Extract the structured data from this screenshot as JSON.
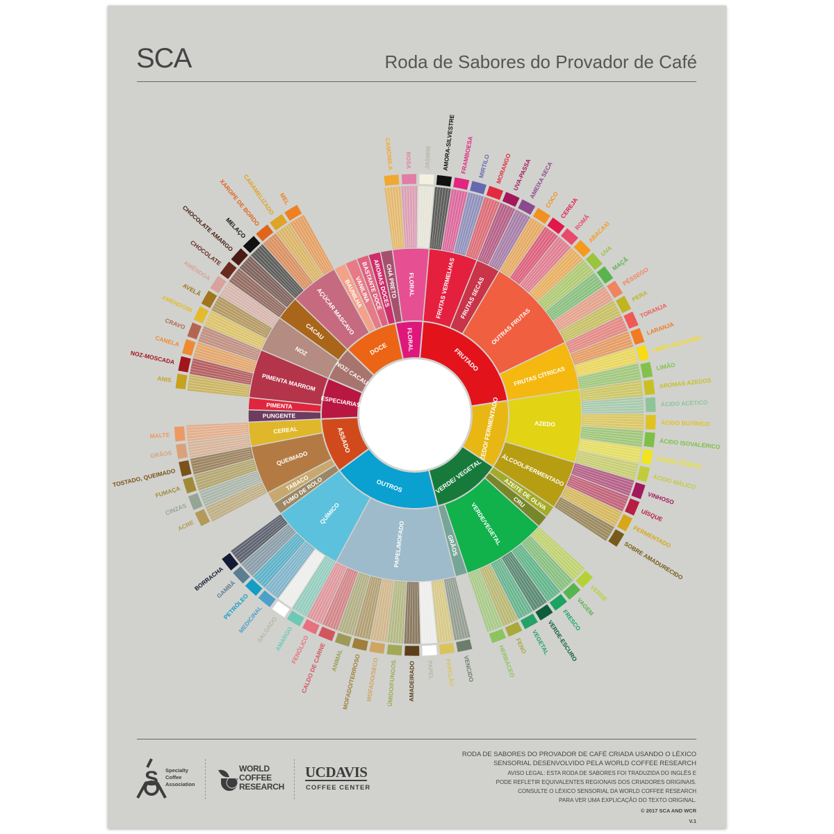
{
  "header": {
    "brand": "SCA",
    "title": "Roda de Sabores do Provador de Café"
  },
  "wheel": {
    "categories": [
      {
        "name": "FLORAL",
        "color": "#e0177a",
        "children": [
          {
            "name": "CHÁ PRETO",
            "color": "#a5516e",
            "children": []
          },
          {
            "name": "FLORAL",
            "color": "#e74f93",
            "children": [
              {
                "name": "CAMOMILA",
                "color": "#f0a832"
              },
              {
                "name": "ROSA",
                "color": "#e27ea5"
              },
              {
                "name": "JASMIM",
                "color": "#f4f0e0"
              }
            ]
          }
        ]
      },
      {
        "name": "FRUTADO",
        "color": "#e3131b",
        "children": [
          {
            "name": "FRUTAS VERMELHAS",
            "color": "#e5203e",
            "children": [
              {
                "name": "AMORA-SILVESTRE",
                "color": "#111111"
              },
              {
                "name": "FRAMBOESA",
                "color": "#e2257f"
              },
              {
                "name": "MIRTILO",
                "color": "#6668b0"
              },
              {
                "name": "MORANGO",
                "color": "#e22b3e"
              }
            ]
          },
          {
            "name": "FRUTAS SECAS",
            "color": "#c93448",
            "children": [
              {
                "name": "UVA-PASSA",
                "color": "#a4175a"
              },
              {
                "name": "AMEIXA SECA",
                "color": "#8b4a8f"
              }
            ]
          },
          {
            "name": "OUTRAS FRUTAS",
            "color": "#f05f40",
            "children": [
              {
                "name": "COCO",
                "color": "#f29120"
              },
              {
                "name": "CEREJA",
                "color": "#e3184a"
              },
              {
                "name": "ROMÃ",
                "color": "#e9496a"
              },
              {
                "name": "ABACAXI",
                "color": "#f59a1c"
              },
              {
                "name": "UVA",
                "color": "#9ac43b"
              },
              {
                "name": "MAÇÃ",
                "color": "#5ab44c"
              },
              {
                "name": "PÊSSEGO",
                "color": "#f08460"
              },
              {
                "name": "PERA",
                "color": "#c0b421"
              }
            ]
          },
          {
            "name": "FRUTAS CÍTRICAS",
            "color": "#f5b811",
            "children": [
              {
                "name": "TORANJA",
                "color": "#ef5a56"
              },
              {
                "name": "LARANJA",
                "color": "#f27a22"
              },
              {
                "name": "LIMÃO SICILIANO",
                "color": "#f8da17"
              },
              {
                "name": "LIMÃO",
                "color": "#82c24a"
              }
            ]
          }
        ]
      },
      {
        "name": "AZEDO/ FERMENTADO",
        "color": "#e8b714",
        "children": [
          {
            "name": "AZEDO",
            "color": "#e2d315",
            "children": [
              {
                "name": "AROMAS AZEDOS",
                "color": "#c8c026"
              },
              {
                "name": "ÁCIDO ACÉTICO",
                "color": "#8fc49a"
              },
              {
                "name": "ÁCIDO BUTÍRICO",
                "color": "#e0c221"
              },
              {
                "name": "ÁCIDO ISOVALÉRICO",
                "color": "#7ebf45"
              },
              {
                "name": "ÁCIDO CÍTRICO",
                "color": "#f0e520"
              },
              {
                "name": "ÁCIDO MÁLICO",
                "color": "#c2cc3b"
              }
            ]
          },
          {
            "name": "ÁLCOOL/FERMENTADO",
            "color": "#b79d12",
            "children": [
              {
                "name": "VINHOSO",
                "color": "#a2185b"
              },
              {
                "name": "UÍSQUE",
                "color": "#b81d44"
              },
              {
                "name": "FERMENTADO",
                "color": "#d7a718"
              },
              {
                "name": "SOBRE AMADURECIDO",
                "color": "#785a19"
              }
            ]
          }
        ]
      },
      {
        "name": "VERDE/ VEGETAL",
        "color": "#177a3a",
        "children": [
          {
            "name": "AZEITE DE OLIVA",
            "color": "#a4ab27",
            "children": []
          },
          {
            "name": "CRU",
            "color": "#78862a",
            "children": []
          },
          {
            "name": "VERDE/VEGETAL",
            "color": "#11b14b",
            "children": [
              {
                "name": "VERDE",
                "color": "#b4d236"
              },
              {
                "name": "VAGEM",
                "color": "#58b44e"
              },
              {
                "name": "FRESCO",
                "color": "#1aa361"
              },
              {
                "name": "VERDE-ESCURO",
                "color": "#0f5c3a"
              },
              {
                "name": "VEGETAL",
                "color": "#24a267"
              },
              {
                "name": "FENO",
                "color": "#aaa93a"
              },
              {
                "name": "HERBÁCEO",
                "color": "#8dc45e"
              }
            ]
          },
          {
            "name": "GRÃOS",
            "color": "#76a598",
            "children": []
          }
        ]
      },
      {
        "name": "OUTROS",
        "color": "#0aa0d0",
        "children": [
          {
            "name": "PAPEL/MOFADO",
            "color": "#9dbbcb",
            "children": [
              {
                "name": "VENCIDO",
                "color": "#6d7d6c"
              },
              {
                "name": "PAPELÃO",
                "color": "#dbc35c"
              },
              {
                "name": "PAPEL",
                "color": "#ffffff"
              },
              {
                "name": "AMADEIRADO",
                "color": "#5c3f1a"
              },
              {
                "name": "ÚMIDO/FUNGOS",
                "color": "#a2a857"
              },
              {
                "name": "MOFADO/SECO",
                "color": "#cea562"
              },
              {
                "name": "MOFADO/TERROSO",
                "color": "#9f7f3b"
              },
              {
                "name": "ANIMAL",
                "color": "#9c9a55"
              },
              {
                "name": "CALDO DE CARNE",
                "color": "#d3555e"
              },
              {
                "name": "FENÓLICO",
                "color": "#e7717f"
              }
            ]
          },
          {
            "name": "QUÍMICO",
            "color": "#5bc1dc",
            "children": [
              {
                "name": "AMARGO",
                "color": "#6dc9b6"
              },
              {
                "name": "SALGADO",
                "color": "#ffffff"
              },
              {
                "name": "MEDICINAL",
                "color": "#4ca1c9"
              },
              {
                "name": "PETRÓLEO",
                "color": "#139dc4"
              },
              {
                "name": "GAMBÁ",
                "color": "#5c7c91"
              },
              {
                "name": "BORRACHA",
                "color": "#121a34"
              }
            ]
          }
        ]
      },
      {
        "name": "ASSADO",
        "color": "#d14a1c",
        "children": [
          {
            "name": "FUMO DE ROLO",
            "color": "#9b8765",
            "children": []
          },
          {
            "name": "TABACO",
            "color": "#c8a86e",
            "children": []
          },
          {
            "name": "QUEIMADO",
            "color": "#b37b43",
            "children": [
              {
                "name": "ACRE",
                "color": "#b39a58"
              },
              {
                "name": "CINZAS",
                "color": "#95a595"
              },
              {
                "name": "FUMAÇA",
                "color": "#a08a36"
              },
              {
                "name": "TOSTADO, QUEIMADO",
                "color": "#7a521a"
              }
            ]
          },
          {
            "name": "CEREAL",
            "color": "#e0b72a",
            "children": [
              {
                "name": "GRÃOS",
                "color": "#d9a27c"
              },
              {
                "name": "MALTE",
                "color": "#ec9a64"
              }
            ]
          }
        ]
      },
      {
        "name": "ESPECIARIAS",
        "color": "#b81741",
        "children": [
          {
            "name": "PUNGENTE",
            "color": "#6d3b5e",
            "children": []
          },
          {
            "name": "PIMENTA",
            "color": "#e2253e",
            "children": []
          },
          {
            "name": "PIMENTA MARROM",
            "color": "#b4344a",
            "children": [
              {
                "name": "ANIS",
                "color": "#c7a21e"
              },
              {
                "name": "NOZ-MOSCADA",
                "color": "#a2151c"
              },
              {
                "name": "CANELA",
                "color": "#ef8a30"
              },
              {
                "name": "CRAVO",
                "color": "#b46552"
              }
            ]
          }
        ]
      },
      {
        "name": "NOZ/ CACAU",
        "color": "#a8746e",
        "children": [
          {
            "name": "NOZ",
            "color": "#b48c81",
            "children": [
              {
                "name": "AMENDOIM",
                "color": "#e3bb2d"
              },
              {
                "name": "AVELÃ",
                "color": "#a1741d"
              },
              {
                "name": "AMÊNDOA",
                "color": "#d8a39a"
              }
            ]
          },
          {
            "name": "CACAU",
            "color": "#a9661a",
            "children": [
              {
                "name": "CHOCOLATE",
                "color": "#6a2a1e"
              },
              {
                "name": "CHOCOLATE AMARGO",
                "color": "#4a1b14"
              }
            ]
          }
        ]
      },
      {
        "name": "DOCE",
        "color": "#ec6517",
        "children": [
          {
            "name": "AÇÚCAR MASCAVO",
            "color": "#c66a80",
            "children": [
              {
                "name": "MELAÇO",
                "color": "#111111"
              },
              {
                "name": "XAROPE DE BORDO",
                "color": "#e0651c"
              },
              {
                "name": "CARAMELIZADO",
                "color": "#dfa326"
              },
              {
                "name": "MEL",
                "color": "#f08120"
              }
            ]
          },
          {
            "name": "BAUNILHA",
            "color": "#f4a18a",
            "children": []
          },
          {
            "name": "VANILINA",
            "color": "#e77a86",
            "children": []
          },
          {
            "name": "BASTANTE DOCE",
            "color": "#e0617e",
            "children": []
          },
          {
            "name": "AROMAS DOCES",
            "color": "#ce2d6b",
            "children": []
          }
        ]
      }
    ]
  },
  "footer": {
    "credit_line1": "RODA DE SABORES DO PROVADOR DE CAFÉ CRIADA USANDO O LÉXICO",
    "credit_line2": "SENSORIAL DESENVOLVIDO PELA WORLD COFFEE RESEARCH",
    "disclaimer1": "AVISO LEGAL: ESTA RODA DE SABORES FOI TRADUZIDA DO INGLÊS E",
    "disclaimer2": "PODE REFLETIR EQUIVALENTES REGIONAIS DOS CRIADORES ORIGINAIS.",
    "disclaimer3": "CONSULTE O LÉXICO SENSORIAL DA WORLD COFFEE RESEARCH",
    "disclaimer4": "PARA VER UMA EXPLICAÇÃO DO TEXTO ORIGINAL.",
    "copyright": "© 2017 SCA AND WCR",
    "version": "V.1",
    "logos": {
      "sca": "Specialty Coffee Association",
      "wcr": "WORLD COFFEE RESEARCH",
      "ucdavis": "UCDAVIS",
      "ucdavis_sub": "COFFEE CENTER"
    }
  }
}
